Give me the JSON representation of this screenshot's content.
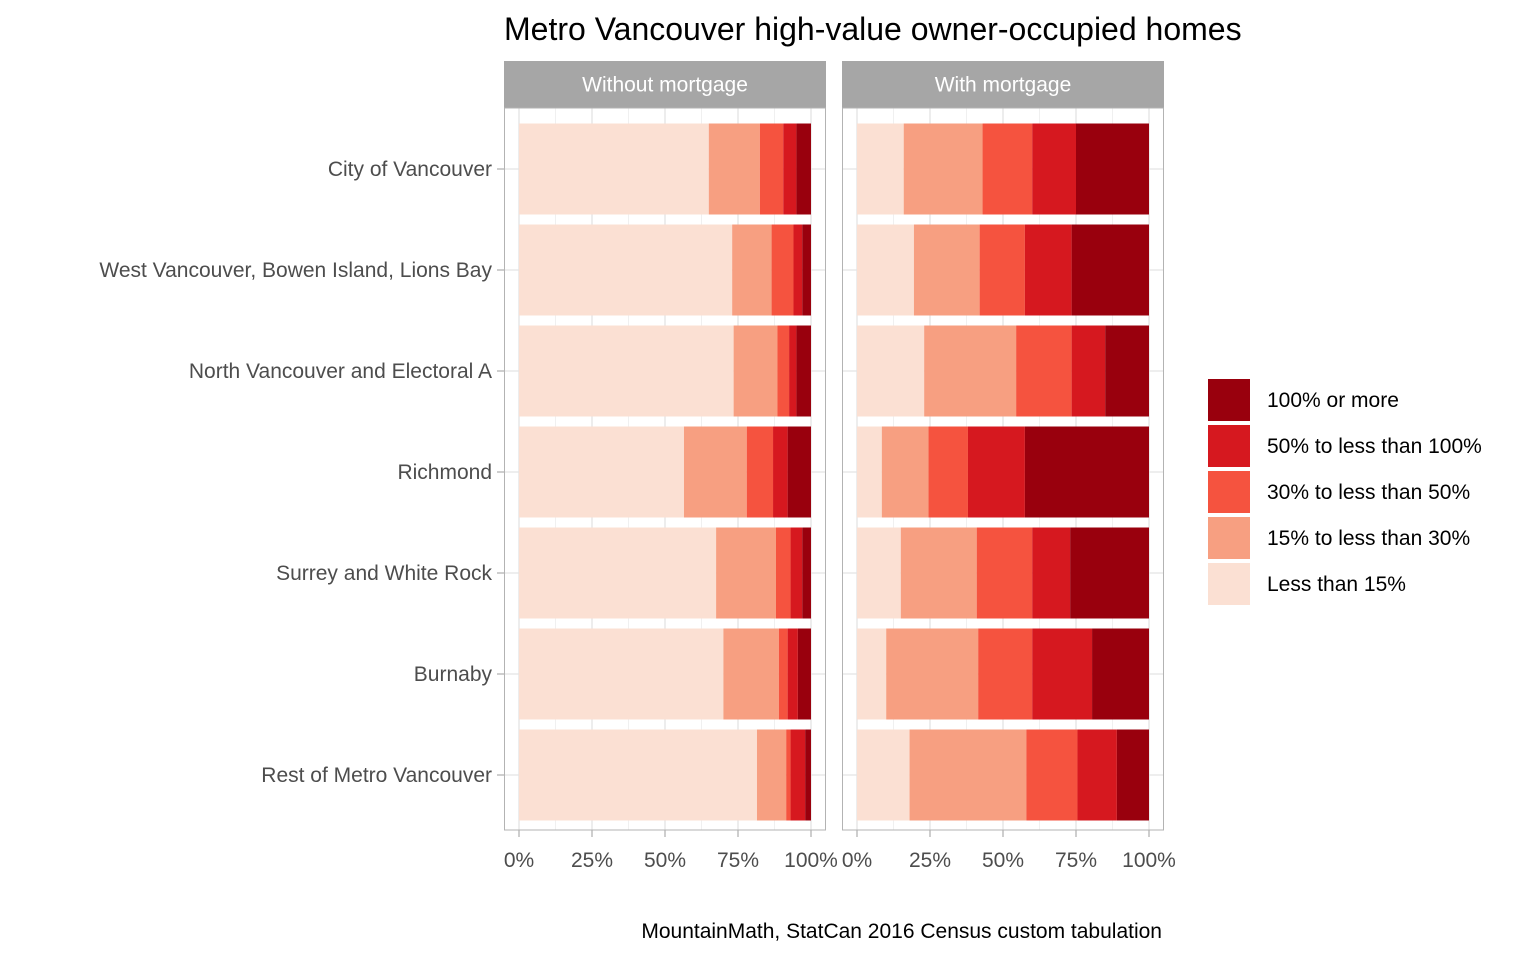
{
  "chart_data": {
    "type": "bar",
    "orientation": "horizontal",
    "stacked": "percent",
    "title": "Metro Vancouver high-value owner-occupied homes",
    "caption": "MountainMath, StatCan 2016 Census custom tabulation",
    "xlabel": "",
    "ylabel": "",
    "xlim": [
      0,
      100
    ],
    "x_ticks": [
      "0%",
      "25%",
      "50%",
      "75%",
      "100%"
    ],
    "categories": [
      "City of Vancouver",
      "West Vancouver, Bowen Island, Lions Bay",
      "North Vancouver and Electoral A",
      "Richmond",
      "Surrey and White Rock",
      "Burnaby",
      "Rest of Metro Vancouver"
    ],
    "legend": {
      "placement": "right",
      "entries": [
        {
          "name": "100% or more",
          "color": "#99000d"
        },
        {
          "name": "50% to less than 100%",
          "color": "#d6181f"
        },
        {
          "name": "30% to less than 50%",
          "color": "#f5533f"
        },
        {
          "name": "15% to less than 30%",
          "color": "#f79f81"
        },
        {
          "name": "Less than 15%",
          "color": "#fbe0d3"
        }
      ]
    },
    "series_order": [
      "Less than 15%",
      "15% to less than 30%",
      "30% to less than 50%",
      "50% to less than 100%",
      "100% or more"
    ],
    "panels": [
      {
        "name": "Without mortgage",
        "values": [
          [
            65,
            17.5,
            8,
            4.5,
            5
          ],
          [
            73,
            13.5,
            7.5,
            3,
            3
          ],
          [
            73.5,
            15,
            4,
            2.5,
            5
          ],
          [
            56.5,
            21.5,
            9,
            5,
            8
          ],
          [
            67.5,
            20.5,
            5,
            4,
            3
          ],
          [
            70,
            19,
            3,
            3.5,
            4.5
          ],
          [
            81.5,
            10,
            1.5,
            5,
            2
          ]
        ]
      },
      {
        "name": "With mortgage",
        "values": [
          [
            16,
            27,
            17,
            15,
            25
          ],
          [
            19.5,
            22.5,
            15.5,
            16,
            26.5
          ],
          [
            23,
            31.5,
            19,
            11.5,
            15
          ],
          [
            8.5,
            16,
            13.5,
            19.5,
            42.5
          ],
          [
            15,
            26,
            19,
            13,
            27
          ],
          [
            10,
            31.5,
            18.5,
            20.5,
            19.5
          ],
          [
            18,
            40,
            17.5,
            13.5,
            11
          ]
        ]
      }
    ]
  }
}
